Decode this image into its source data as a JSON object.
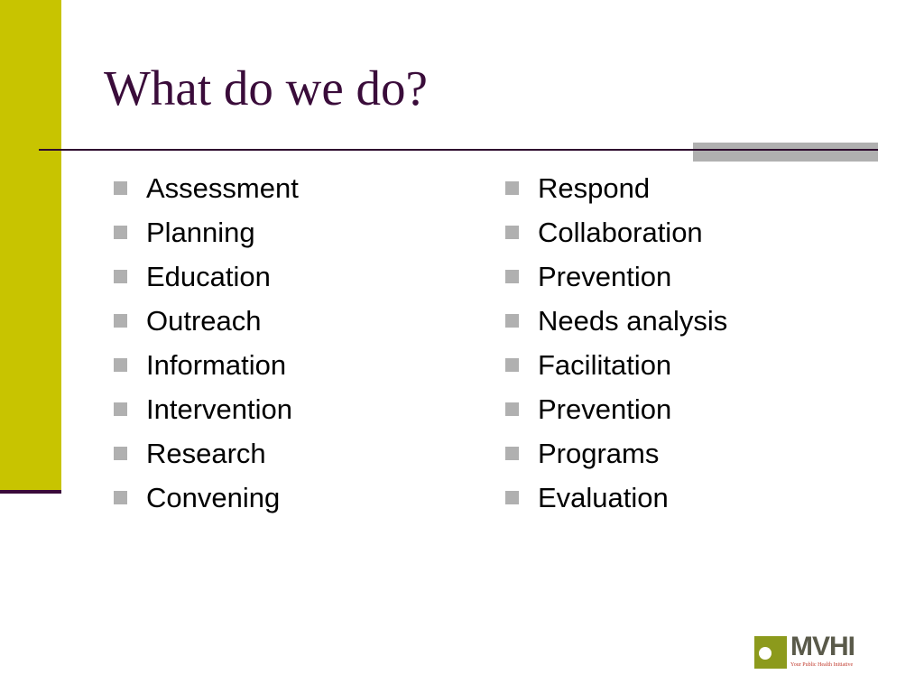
{
  "slide": {
    "title": "What do we do?",
    "colors": {
      "sidebar": "#c8c400",
      "title": "#3a0c3a",
      "rule": "#2e0a2e",
      "bullet": "#b0b0b0"
    },
    "left_items": [
      "Assessment",
      "Planning",
      "Education",
      "Outreach",
      "Information",
      "Intervention",
      "Research",
      "Convening"
    ],
    "right_items": [
      "Respond",
      "Collaboration",
      "Prevention",
      "Needs analysis",
      "Facilitation",
      "Prevention",
      "Programs",
      "Evaluation"
    ]
  },
  "logo": {
    "name": "MVHI",
    "tagline": "Your Public Health Initiative"
  }
}
